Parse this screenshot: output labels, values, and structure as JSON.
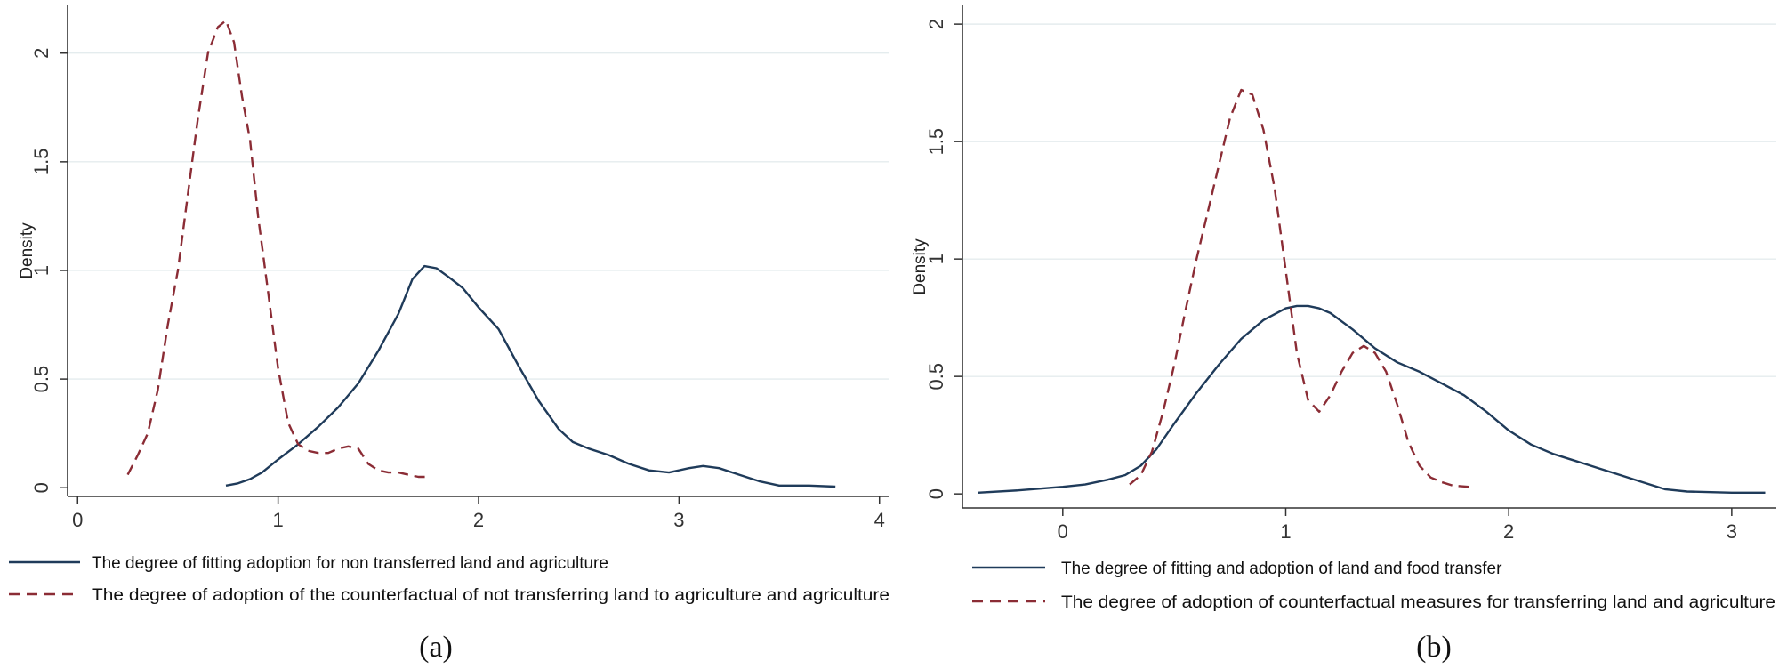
{
  "chart_data": [
    {
      "type": "line",
      "panel_label": "(a)",
      "ylabel": "Density",
      "xlabel": "",
      "xlim": [
        -0.05,
        4.05
      ],
      "ylim": [
        -0.04,
        2.22
      ],
      "xticks": [
        0,
        1,
        2,
        3,
        4
      ],
      "xtick_labels": [
        "0",
        "1",
        "2",
        "3",
        "4"
      ],
      "yticks": [
        0,
        0.5,
        1,
        1.5,
        2
      ],
      "ytick_labels": [
        "0",
        "0.5",
        "1",
        "1.5",
        "2"
      ],
      "grid": true,
      "legend_position": "bottom",
      "series": [
        {
          "name": "The degree of fitting adoption for non transferred land and agriculture",
          "color": "#1f3b5a",
          "style": "solid",
          "x": [
            0.74,
            0.8,
            0.86,
            0.92,
            1.0,
            1.1,
            1.2,
            1.3,
            1.4,
            1.5,
            1.6,
            1.67,
            1.73,
            1.79,
            1.85,
            1.92,
            2.0,
            2.1,
            2.2,
            2.3,
            2.4,
            2.47,
            2.55,
            2.65,
            2.75,
            2.85,
            2.95,
            3.05,
            3.12,
            3.2,
            3.3,
            3.4,
            3.5,
            3.65,
            3.78
          ],
          "y": [
            0.01,
            0.02,
            0.04,
            0.07,
            0.13,
            0.2,
            0.28,
            0.37,
            0.48,
            0.63,
            0.8,
            0.96,
            1.02,
            1.01,
            0.97,
            0.92,
            0.83,
            0.73,
            0.56,
            0.4,
            0.27,
            0.21,
            0.18,
            0.15,
            0.11,
            0.08,
            0.07,
            0.09,
            0.1,
            0.09,
            0.06,
            0.03,
            0.01,
            0.01,
            0.005
          ]
        },
        {
          "name": "The degree of adoption of the counterfactual of not transferring land to agriculture and agriculture",
          "color": "#8b2c35",
          "style": "dashed",
          "x": [
            0.25,
            0.3,
            0.35,
            0.4,
            0.45,
            0.5,
            0.55,
            0.6,
            0.65,
            0.7,
            0.74,
            0.78,
            0.82,
            0.86,
            0.9,
            0.95,
            1.0,
            1.05,
            1.1,
            1.15,
            1.2,
            1.25,
            1.3,
            1.35,
            1.4,
            1.45,
            1.5,
            1.55,
            1.6,
            1.65,
            1.7,
            1.75
          ],
          "y": [
            0.06,
            0.15,
            0.25,
            0.45,
            0.75,
            1.0,
            1.35,
            1.7,
            2.0,
            2.12,
            2.15,
            2.05,
            1.8,
            1.6,
            1.25,
            0.9,
            0.55,
            0.3,
            0.2,
            0.17,
            0.16,
            0.16,
            0.18,
            0.19,
            0.18,
            0.11,
            0.08,
            0.07,
            0.07,
            0.06,
            0.05,
            0.05
          ]
        }
      ]
    },
    {
      "type": "line",
      "panel_label": "(b)",
      "ylabel": "Density",
      "xlabel": "",
      "xlim": [
        -0.45,
        3.2
      ],
      "ylim": [
        -0.06,
        2.08
      ],
      "xticks": [
        0,
        1,
        2,
        3
      ],
      "xtick_labels": [
        "0",
        "1",
        "2",
        "3"
      ],
      "yticks": [
        0,
        0.5,
        1,
        1.5,
        2
      ],
      "ytick_labels": [
        "0",
        "0.5",
        "1",
        "1.5",
        "2"
      ],
      "grid": true,
      "legend_position": "bottom",
      "series": [
        {
          "name": "The degree of fitting and adoption of land and food transfer",
          "color": "#1f3b5a",
          "style": "solid",
          "x": [
            -0.38,
            -0.2,
            0.0,
            0.1,
            0.2,
            0.28,
            0.35,
            0.42,
            0.5,
            0.6,
            0.7,
            0.8,
            0.9,
            1.0,
            1.05,
            1.1,
            1.15,
            1.2,
            1.3,
            1.4,
            1.5,
            1.6,
            1.7,
            1.8,
            1.9,
            2.0,
            2.1,
            2.2,
            2.3,
            2.4,
            2.5,
            2.6,
            2.7,
            2.8,
            3.0,
            3.15
          ],
          "y": [
            0.005,
            0.015,
            0.03,
            0.04,
            0.06,
            0.08,
            0.12,
            0.19,
            0.3,
            0.43,
            0.55,
            0.66,
            0.74,
            0.79,
            0.8,
            0.8,
            0.79,
            0.77,
            0.7,
            0.62,
            0.56,
            0.52,
            0.47,
            0.42,
            0.35,
            0.27,
            0.21,
            0.17,
            0.14,
            0.11,
            0.08,
            0.05,
            0.02,
            0.01,
            0.005,
            0.005
          ]
        },
        {
          "name": "The degree of adoption of counterfactual measures for transferring land and agriculture",
          "color": "#8b2c35",
          "style": "dashed",
          "x": [
            0.3,
            0.35,
            0.4,
            0.45,
            0.5,
            0.55,
            0.6,
            0.65,
            0.7,
            0.75,
            0.8,
            0.85,
            0.9,
            0.95,
            1.0,
            1.05,
            1.1,
            1.15,
            1.2,
            1.25,
            1.3,
            1.35,
            1.4,
            1.45,
            1.5,
            1.55,
            1.6,
            1.65,
            1.7,
            1.75,
            1.82
          ],
          "y": [
            0.04,
            0.08,
            0.18,
            0.35,
            0.55,
            0.78,
            1.0,
            1.2,
            1.4,
            1.6,
            1.72,
            1.7,
            1.55,
            1.3,
            0.95,
            0.6,
            0.4,
            0.35,
            0.42,
            0.52,
            0.6,
            0.63,
            0.6,
            0.52,
            0.38,
            0.22,
            0.12,
            0.07,
            0.05,
            0.035,
            0.03
          ]
        }
      ]
    }
  ]
}
